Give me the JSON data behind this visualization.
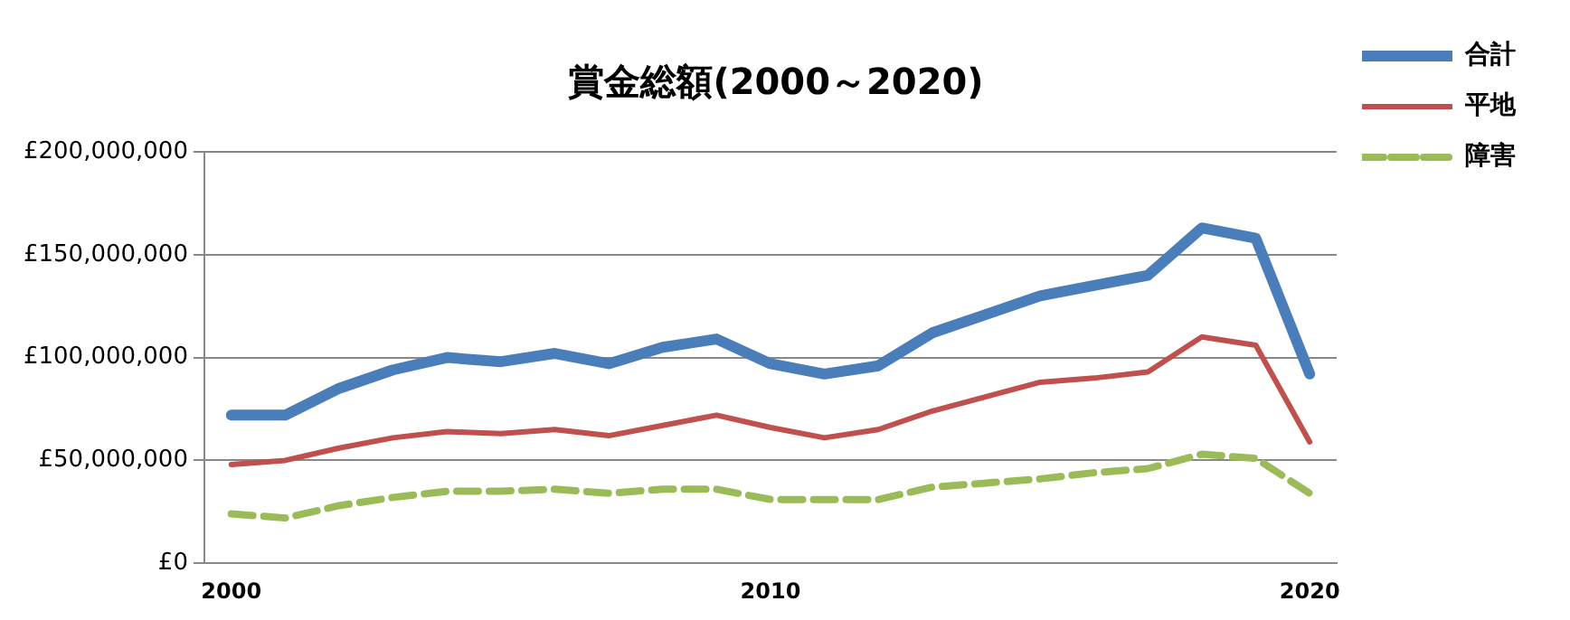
{
  "chart_data": {
    "type": "line",
    "title": "賞金総額(2000～2020)",
    "categories": [
      "2000",
      null,
      null,
      null,
      null,
      null,
      null,
      null,
      null,
      null,
      "2010",
      null,
      null,
      null,
      null,
      null,
      null,
      null,
      null,
      null,
      "2020"
    ],
    "series": [
      {
        "name": "合計",
        "color": "#4a7ebb",
        "line_style": "solid",
        "values": [
          72000000,
          72000000,
          85000000,
          94000000,
          100000000,
          98000000,
          102000000,
          97000000,
          105000000,
          109000000,
          97000000,
          92000000,
          96000000,
          112000000,
          121000000,
          130000000,
          135000000,
          140000000,
          163000000,
          158000000,
          92000000
        ]
      },
      {
        "name": "平地",
        "color": "#c0504d",
        "line_style": "solid",
        "values": [
          48000000,
          50000000,
          56000000,
          61000000,
          64000000,
          63000000,
          65000000,
          62000000,
          67000000,
          72000000,
          66000000,
          61000000,
          65000000,
          74000000,
          81000000,
          88000000,
          90000000,
          93000000,
          110000000,
          106000000,
          59000000
        ]
      },
      {
        "name": "障害",
        "color": "#9bbb59",
        "line_style": "dashed",
        "values": [
          24000000,
          22000000,
          28000000,
          32000000,
          35000000,
          35000000,
          36000000,
          34000000,
          36000000,
          36000000,
          31000000,
          31000000,
          31000000,
          37000000,
          39000000,
          41000000,
          44000000,
          46000000,
          53000000,
          51000000,
          34000000
        ]
      }
    ],
    "ylim": [
      0,
      200000000
    ],
    "yticks": [
      {
        "value": 0,
        "label": "£0"
      },
      {
        "value": 50000000,
        "label": "£50,000,000"
      },
      {
        "value": 100000000,
        "label": "£100,000,000"
      },
      {
        "value": 150000000,
        "label": "£150,000,000"
      },
      {
        "value": 200000000,
        "label": "£200,000,000"
      }
    ],
    "grid": "y",
    "legend": "top right",
    "marker": "none"
  }
}
